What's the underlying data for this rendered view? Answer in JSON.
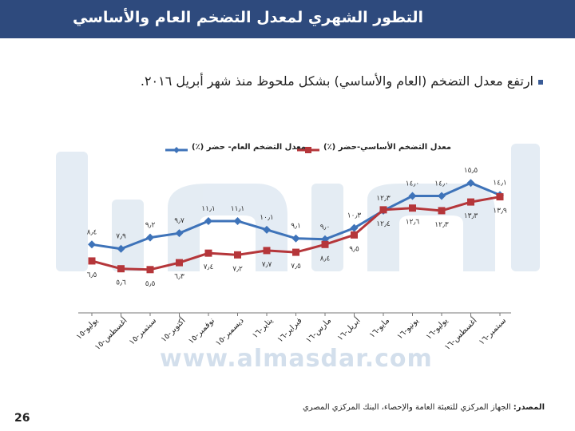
{
  "header": {
    "title": "التطور الشهري لمعدل التضخم العام والأساسي"
  },
  "bullet": {
    "text": "ارتفع معدل التضخم (العام والأساسي) بشكل ملحوظ منذ شهر أبريل ٢٠١٦."
  },
  "chart_data": {
    "type": "line",
    "categories": [
      "يوليو-١٥",
      "أغسطس-١٥",
      "سبتمبر-١٥",
      "أكتوبر-١٥",
      "نوفمبر-١٥",
      "ديسمبر-١٥",
      "يناير-١٦",
      "فبراير-١٦",
      "مارس-١٦",
      "أبريل-١٦",
      "مايو-١٦",
      "يونيو-١٦",
      "يوليو-١٦",
      "أغسطس-١٦",
      "سبتمبر-١٦"
    ],
    "series": [
      {
        "name": "معدل التضخم العام- حضر (٪)",
        "color": "#3e73b9",
        "values": [
          8.4,
          7.9,
          9.2,
          9.7,
          11.1,
          11.1,
          10.1,
          9.1,
          9.0,
          10.3,
          12.3,
          14.0,
          14.0,
          15.5,
          14.1
        ],
        "labels": [
          "٨٫٤",
          "٧٫٩",
          "٩٫٢",
          "٩٫٧",
          "١١٫١",
          "١١٫١",
          "١٠٫١",
          "٩٫١",
          "٩٫٠",
          "١٠٫٣",
          "١٢٫٣",
          "١٤٫٠",
          "١٤٫٠",
          "١٥٫٥",
          "١٤٫١"
        ]
      },
      {
        "name": "معدل التضخم الأساسي-حضر (٪)",
        "color": "#b5363a",
        "values": [
          6.5,
          5.6,
          5.5,
          6.3,
          7.4,
          7.2,
          7.7,
          7.5,
          8.4,
          9.5,
          12.4,
          12.6,
          12.3,
          13.3,
          13.9
        ],
        "labels": [
          "٦٫٥",
          "٥٫٦",
          "٥٫٥",
          "٦٫٣",
          "٧٫٤",
          "٧٫٢",
          "٧٫٧",
          "٧٫٥",
          "٨٫٤",
          "٩٫٥",
          "١٢٫٤",
          "١٢٫٦",
          "١٢٫٣",
          "١٣٫٣",
          "١٣٫٩"
        ]
      }
    ],
    "legend_position": "top",
    "grid": false
  },
  "watermark": {
    "url": "www.almasdar.com"
  },
  "source": {
    "label": "المصدر:",
    "text": "الجهاز المركزي للتعبئة العامة والإحصاء، البنك المركزي المصري"
  },
  "page": {
    "number": "26"
  }
}
